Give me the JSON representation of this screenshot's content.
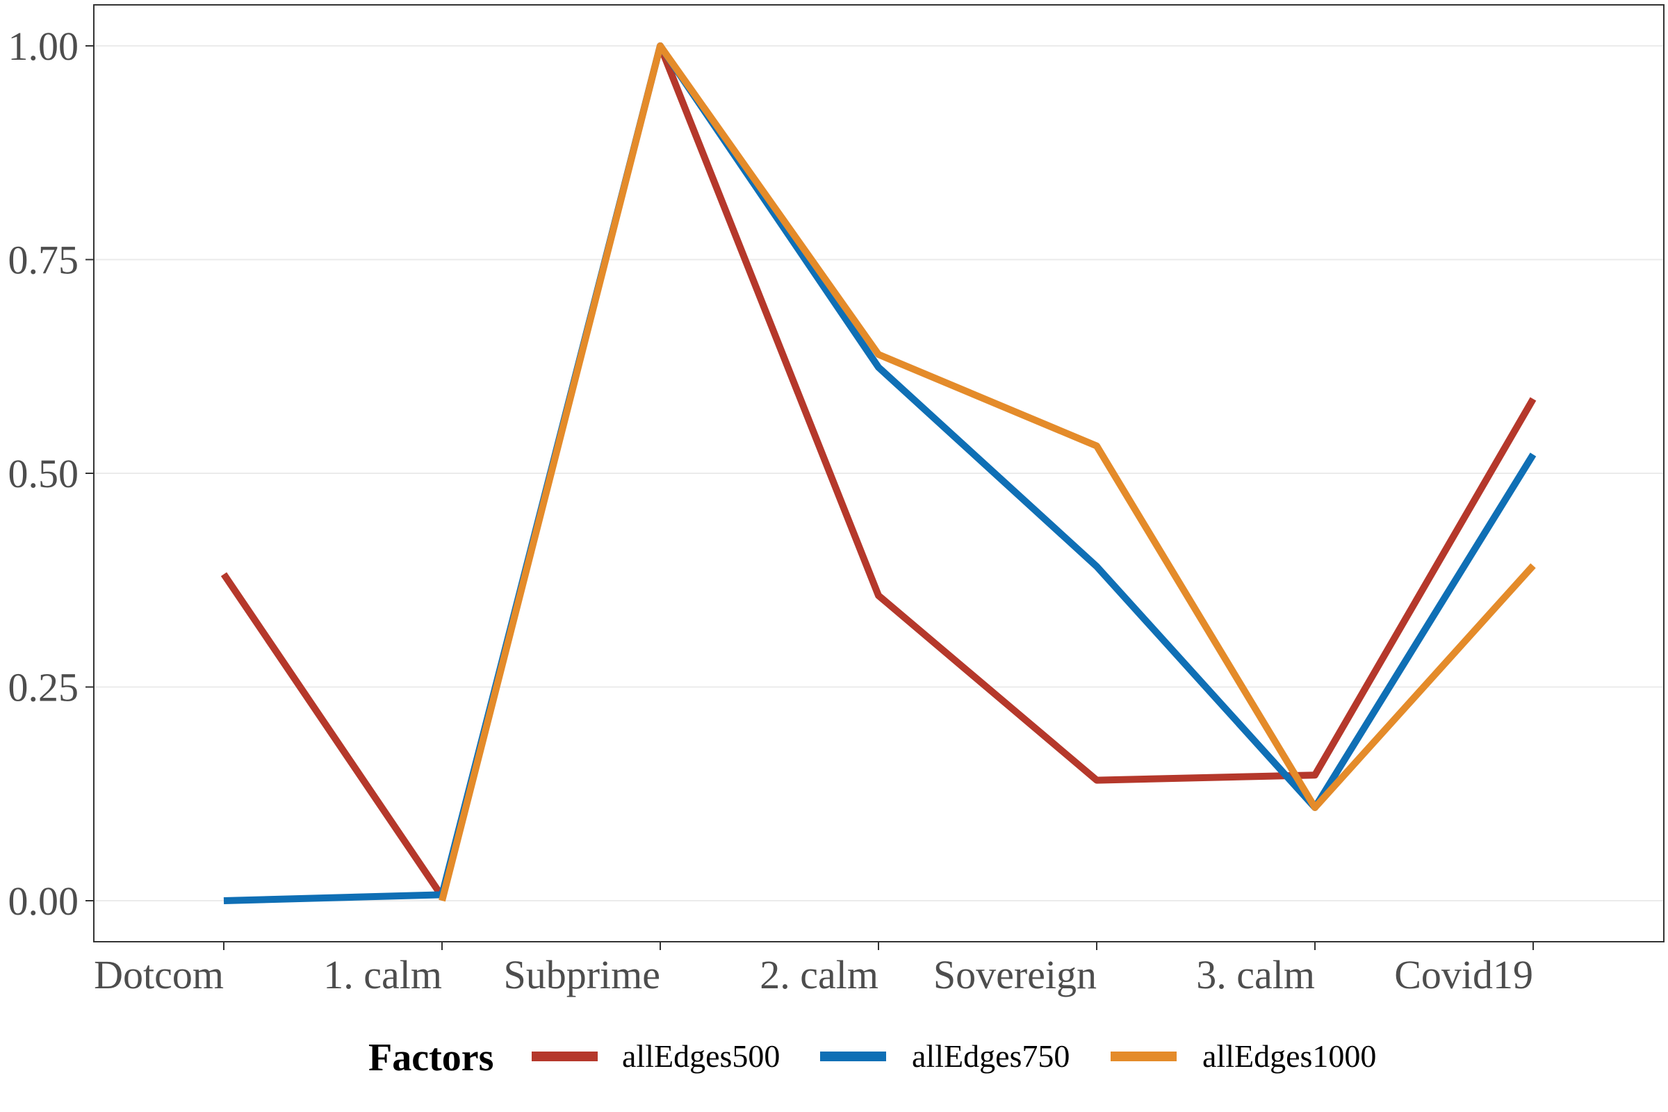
{
  "chart_data": {
    "type": "line",
    "categories": [
      "Dotcom",
      "1. calm",
      "Subprime",
      "2. calm",
      "Sovereign",
      "3. calm",
      "Covid19"
    ],
    "series": [
      {
        "name": "allEdges500",
        "color": "#b5382b",
        "values": [
          0.382,
          0.005,
          1.0,
          0.357,
          0.141,
          0.147,
          0.587
        ]
      },
      {
        "name": "allEdges750",
        "color": "#0f6fb5",
        "values": [
          0.0,
          0.007,
          1.0,
          0.624,
          0.391,
          0.109,
          0.522
        ]
      },
      {
        "name": "allEdges1000",
        "color": "#e48b2a",
        "values": [
          null,
          0.0,
          1.0,
          0.639,
          0.532,
          0.109,
          0.392
        ]
      }
    ],
    "y_ticks": [
      "0.00",
      "0.25",
      "0.50",
      "0.75",
      "1.00"
    ],
    "ylim": [
      -0.048,
      1.05
    ],
    "grid": true,
    "legend": {
      "title": "Factors",
      "position": "bottom"
    }
  }
}
